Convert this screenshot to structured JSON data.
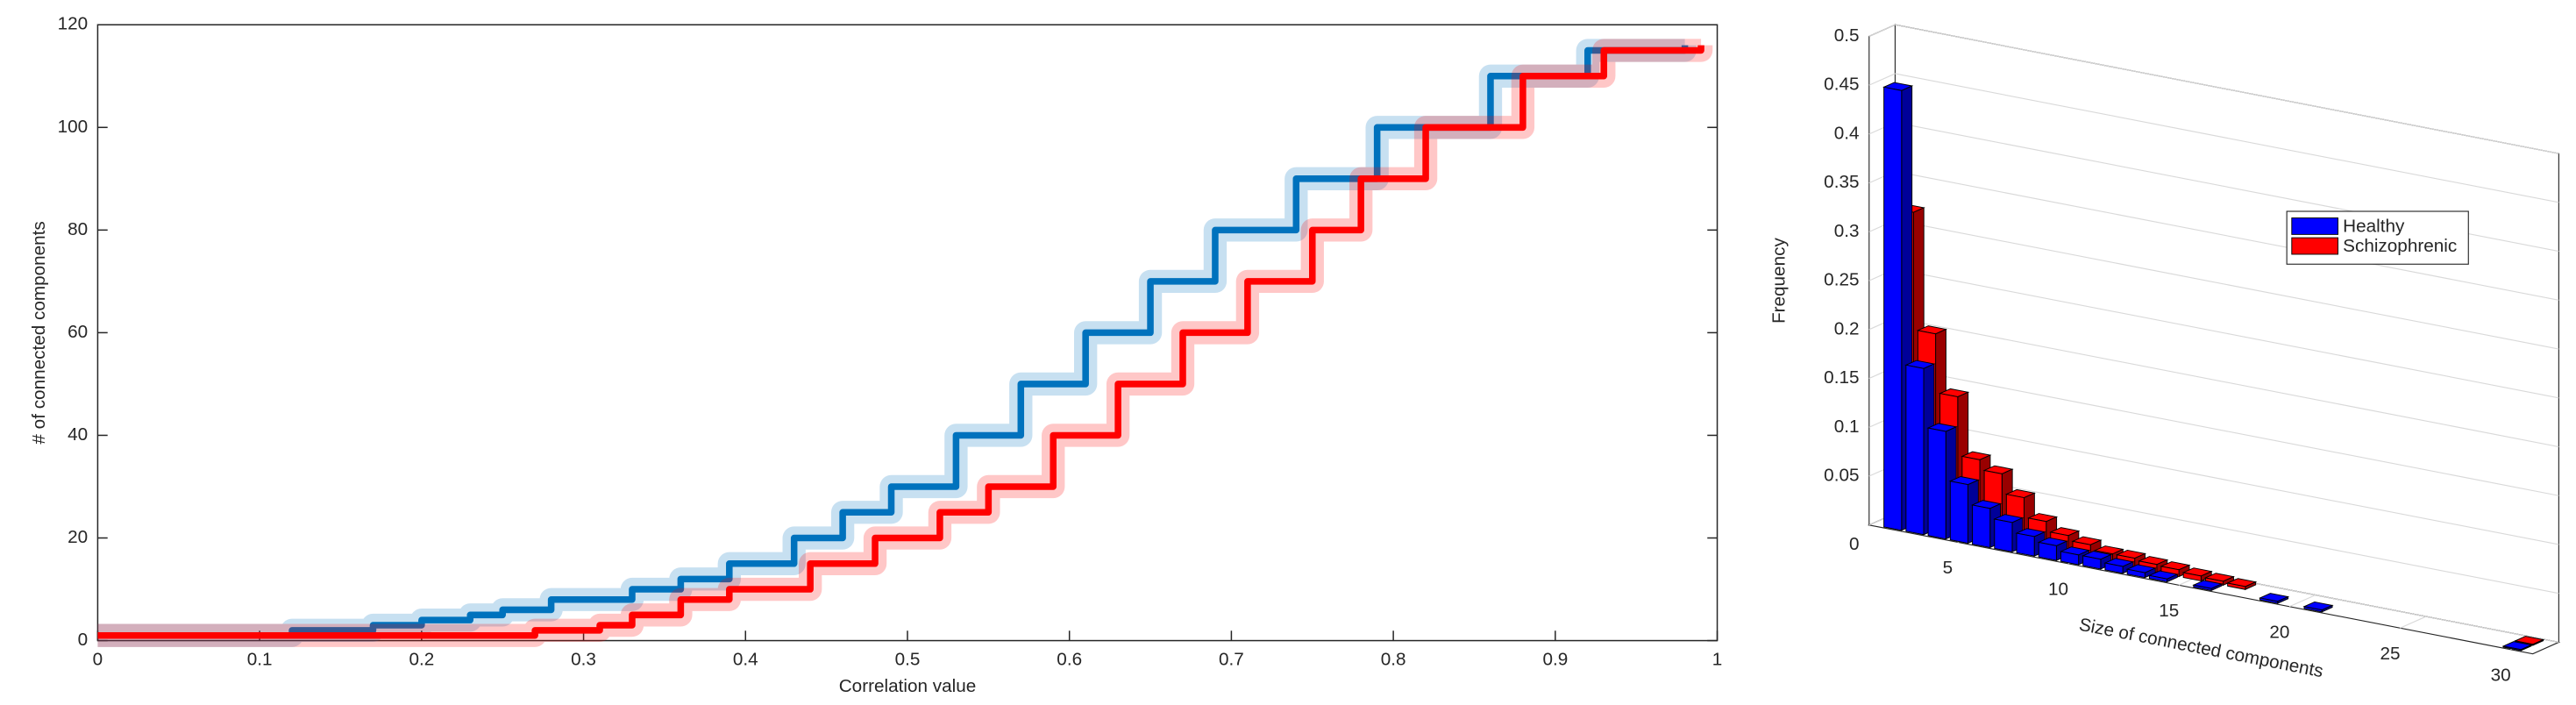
{
  "chart_data": [
    {
      "type": "line",
      "xlabel": "Correlation value",
      "ylabel": "# of connected components",
      "xlim": [
        0,
        1
      ],
      "ylim": [
        0,
        120
      ],
      "xticks": [
        0,
        0.1,
        0.2,
        0.3,
        0.4,
        0.5,
        0.6,
        0.7,
        0.8,
        0.9,
        1
      ],
      "yticks": [
        0,
        20,
        40,
        60,
        80,
        100,
        120
      ],
      "series": [
        {
          "color": "#0072bd",
          "x": [
            0,
            0.12,
            0.17,
            0.2,
            0.23,
            0.25,
            0.28,
            0.33,
            0.36,
            0.39,
            0.43,
            0.46,
            0.49,
            0.53,
            0.57,
            0.61,
            0.65,
            0.69,
            0.74,
            0.79,
            0.86,
            0.92,
            0.98
          ],
          "values": [
            1,
            2,
            3,
            4,
            5,
            6,
            8,
            10,
            12,
            15,
            20,
            25,
            30,
            40,
            50,
            60,
            70,
            80,
            90,
            100,
            110,
            115,
            116
          ]
        },
        {
          "color": "#ff0000",
          "x": [
            0,
            0.27,
            0.31,
            0.33,
            0.36,
            0.39,
            0.44,
            0.48,
            0.52,
            0.55,
            0.59,
            0.63,
            0.67,
            0.71,
            0.75,
            0.78,
            0.82,
            0.88,
            0.93,
            0.99
          ],
          "values": [
            1,
            2,
            3,
            5,
            8,
            10,
            15,
            20,
            25,
            30,
            40,
            50,
            60,
            70,
            80,
            90,
            100,
            110,
            115,
            116
          ]
        }
      ]
    },
    {
      "type": "bar3d",
      "xlabel": "Size of connected components",
      "ylabel": "Frequency",
      "xlim": [
        1,
        31
      ],
      "ylim": [
        0,
        0.5
      ],
      "xticks": [
        5,
        10,
        15,
        20,
        25,
        30
      ],
      "yticks": [
        0,
        0.05,
        0.1,
        0.15,
        0.2,
        0.25,
        0.3,
        0.35,
        0.4,
        0.45,
        0.5
      ],
      "grid": true,
      "legend": "upper right",
      "x": [
        2,
        3,
        4,
        5,
        6,
        7,
        8,
        9,
        10,
        11,
        12,
        13,
        14,
        15,
        16,
        17,
        19,
        21,
        30
      ],
      "series": [
        {
          "name": "Healthy",
          "color": "#0000ff",
          "values": [
            0.45,
            0.17,
            0.11,
            0.06,
            0.04,
            0.03,
            0.02,
            0.015,
            0.01,
            0.01,
            0.007,
            0.005,
            0.003,
            null,
            0.002,
            null,
            0.002,
            0.002,
            0.001
          ]
        },
        {
          "name": "Schizophrenic",
          "color": "#ff0000",
          "values": [
            0.32,
            0.2,
            0.14,
            0.08,
            0.07,
            0.05,
            0.03,
            0.02,
            0.015,
            0.01,
            0.01,
            0.008,
            0.007,
            0.005,
            0.004,
            0.003,
            null,
            null,
            0.001
          ]
        }
      ]
    }
  ]
}
